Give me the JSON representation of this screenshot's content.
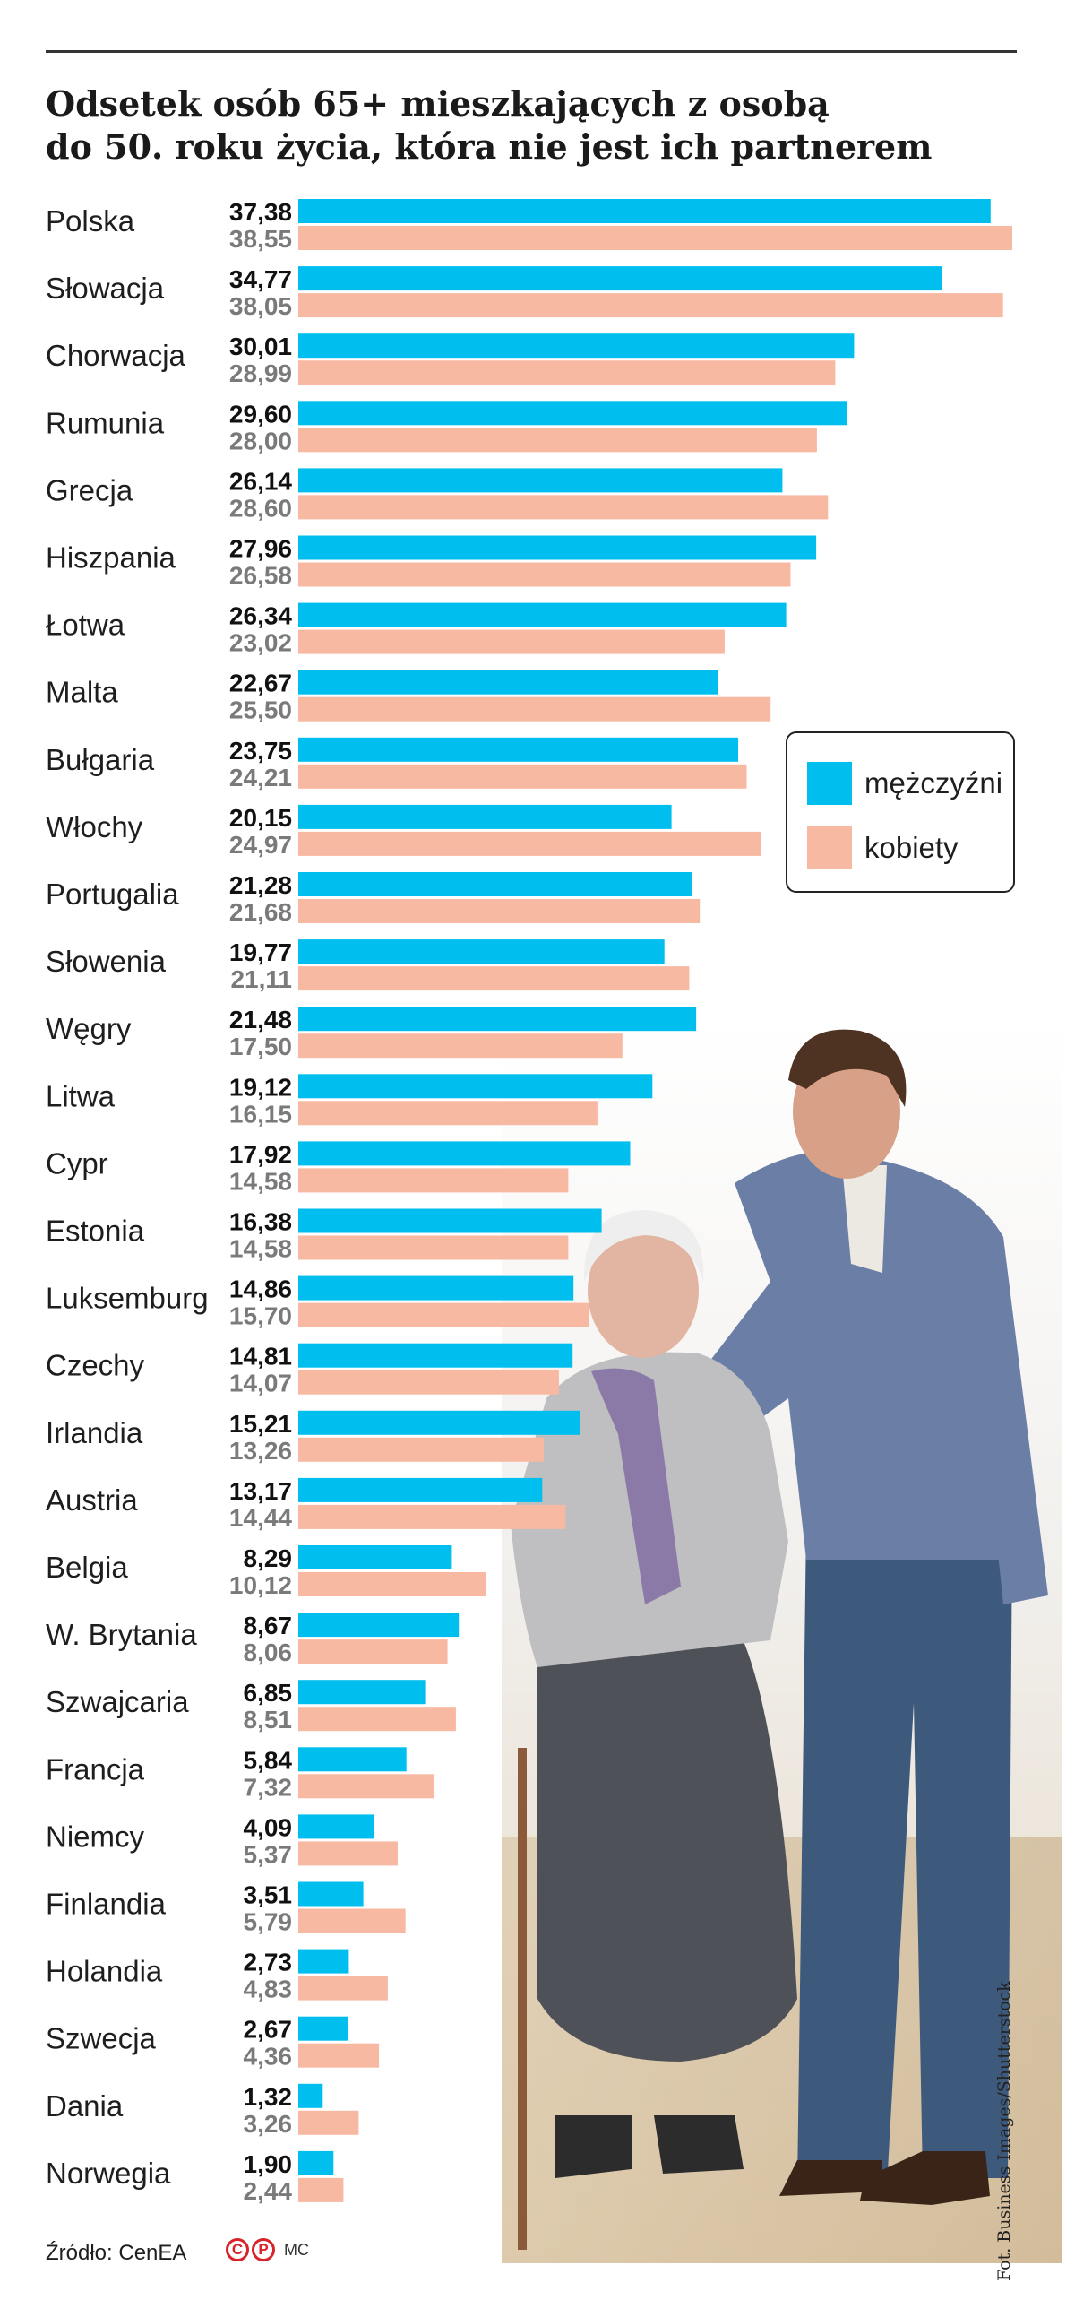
{
  "chart_data": {
    "type": "bar",
    "orientation": "horizontal",
    "title": "Odsetek osób 65+ mieszkających z osobą do 50. roku życia, która nie jest ich partnerem",
    "title_lines": [
      "Odsetek osób 65+ mieszkających z osobą",
      "do 50. roku życia, która nie jest ich partnerem"
    ],
    "categories": [
      "Polska",
      "Słowacja",
      "Chorwacja",
      "Rumunia",
      "Grecja",
      "Hiszpania",
      "Łotwa",
      "Malta",
      "Bułgaria",
      "Włochy",
      "Portugalia",
      "Słowenia",
      "Węgry",
      "Litwa",
      "Cypr",
      "Estonia",
      "Luksemburg",
      "Czechy",
      "Irlandia",
      "Austria",
      "Belgia",
      "W. Brytania",
      "Szwajcaria",
      "Francja",
      "Niemcy",
      "Finlandia",
      "Holandia",
      "Szwecja",
      "Dania",
      "Norwegia"
    ],
    "series": [
      {
        "name": "mężczyźni",
        "color": "#00bfee",
        "values": [
          37.38,
          34.77,
          30.01,
          29.6,
          26.14,
          27.96,
          26.34,
          22.67,
          23.75,
          20.15,
          21.28,
          19.77,
          21.48,
          19.12,
          17.92,
          16.38,
          14.86,
          14.81,
          15.21,
          13.17,
          8.29,
          8.67,
          6.85,
          5.84,
          4.09,
          3.51,
          2.73,
          2.67,
          1.32,
          1.9
        ],
        "labels": [
          "37,38",
          "34,77",
          "30,01",
          "29,60",
          "26,14",
          "27,96",
          "26,34",
          "22,67",
          "23,75",
          "20,15",
          "21,28",
          "19,77",
          "21,48",
          "19,12",
          "17,92",
          "16,38",
          "14,86",
          "14,81",
          "15,21",
          "13,17",
          "8,29",
          "8,67",
          "6,85",
          "5,84",
          "4,09",
          "3,51",
          "2,73",
          "2,67",
          "1,32",
          "1,90"
        ]
      },
      {
        "name": "kobiety",
        "color": "#f8b9a3",
        "values": [
          38.55,
          38.05,
          28.99,
          28.0,
          28.6,
          26.58,
          23.02,
          25.5,
          24.21,
          24.97,
          21.68,
          21.11,
          17.5,
          16.15,
          14.58,
          14.58,
          15.7,
          14.07,
          13.26,
          14.44,
          10.12,
          8.06,
          8.51,
          7.32,
          5.37,
          5.79,
          4.83,
          4.36,
          3.26,
          2.44
        ],
        "labels": [
          "38,55",
          "38,05",
          "28,99",
          "28,00",
          "28,60",
          "26,58",
          "23,02",
          "25,50",
          "24,21",
          "24,97",
          "21,68",
          "21,11",
          "17,50",
          "16,15",
          "14,58",
          "14,58",
          "15,70",
          "14,07",
          "13,26",
          "14,44",
          "10,12",
          "8,06",
          "8,51",
          "7,32",
          "5,37",
          "5,79",
          "4,83",
          "4,36",
          "3,26",
          "2,44"
        ]
      }
    ],
    "xlim": [
      0,
      38.55
    ],
    "grid": false,
    "legend_position": "right"
  },
  "source": "Źródło: CenEA",
  "logo_marks": [
    "C",
    "P"
  ],
  "author": "MC",
  "photo_credit": "Fot. Business Images/Shutterstock",
  "colors": {
    "title": "#1a1a1a",
    "men": "#00bfee",
    "women": "#f8b9a3",
    "logo": "#d8232a"
  }
}
